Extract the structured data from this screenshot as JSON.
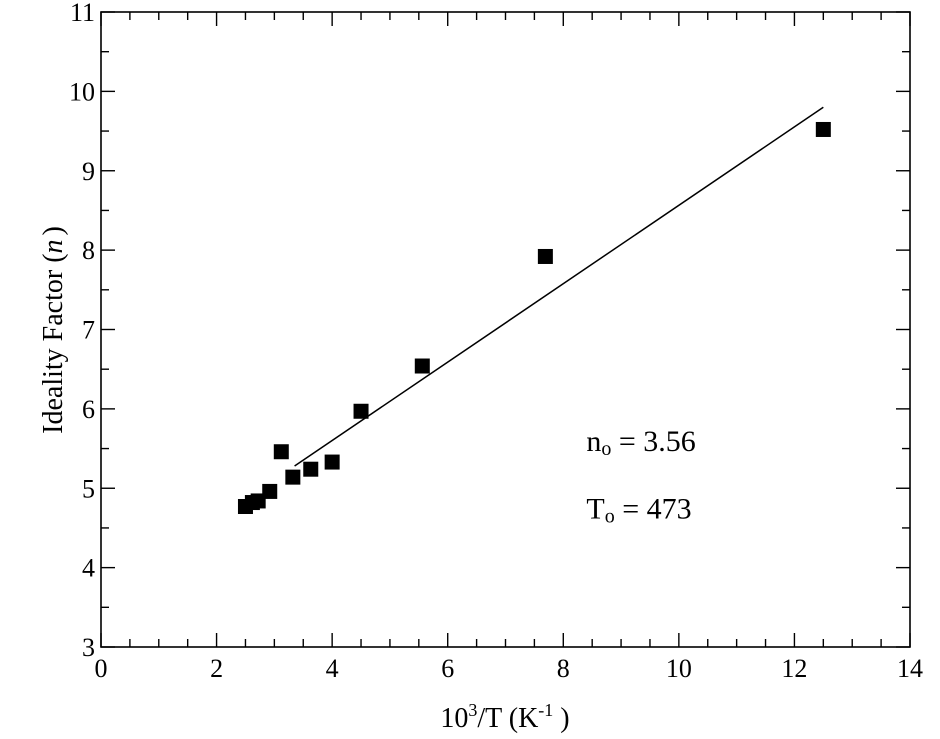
{
  "chart_data": {
    "type": "scatter",
    "title": "",
    "xlabel": {
      "base": "10",
      "base_sup": "3",
      "mid": "/T (K",
      "unit_sup": "-1",
      "end": " )"
    },
    "ylabel": {
      "prefix": "Ideality Factor (",
      "var": "n",
      "suffix": ")"
    },
    "xlim": [
      0,
      14
    ],
    "ylim": [
      3,
      11
    ],
    "x_ticks": [
      "0",
      "2",
      "4",
      "6",
      "8",
      "10",
      "12",
      "14"
    ],
    "y_ticks": [
      "3",
      "4",
      "5",
      "6",
      "7",
      "8",
      "9",
      "10",
      "11"
    ],
    "x_minor_step": 0.5,
    "y_minor_step": 0.5,
    "grid": false,
    "series": [
      {
        "marker": "square",
        "color": "#000000",
        "points": [
          {
            "x": 2.5,
            "y": 4.77
          },
          {
            "x": 2.62,
            "y": 4.82
          },
          {
            "x": 2.72,
            "y": 4.84
          },
          {
            "x": 2.92,
            "y": 4.96
          },
          {
            "x": 3.12,
            "y": 5.46
          },
          {
            "x": 3.32,
            "y": 5.14
          },
          {
            "x": 3.63,
            "y": 5.24
          },
          {
            "x": 4.0,
            "y": 5.33
          },
          {
            "x": 4.5,
            "y": 5.97
          },
          {
            "x": 5.56,
            "y": 6.54
          },
          {
            "x": 7.69,
            "y": 7.92
          },
          {
            "x": 12.5,
            "y": 9.52
          }
        ]
      }
    ],
    "fit_line": {
      "color": "#000000",
      "points": [
        {
          "x": 3.35,
          "y": 5.28
        },
        {
          "x": 12.5,
          "y": 9.8
        }
      ]
    },
    "annotations": [
      {
        "name": "n-zero",
        "label": "n",
        "sub": "o",
        "value": " = 3.56",
        "x": 8.4,
        "y": 5.47
      },
      {
        "name": "t-zero",
        "label": "T",
        "sub": "o",
        "value": " = 473",
        "x": 8.4,
        "y": 4.62
      }
    ]
  }
}
